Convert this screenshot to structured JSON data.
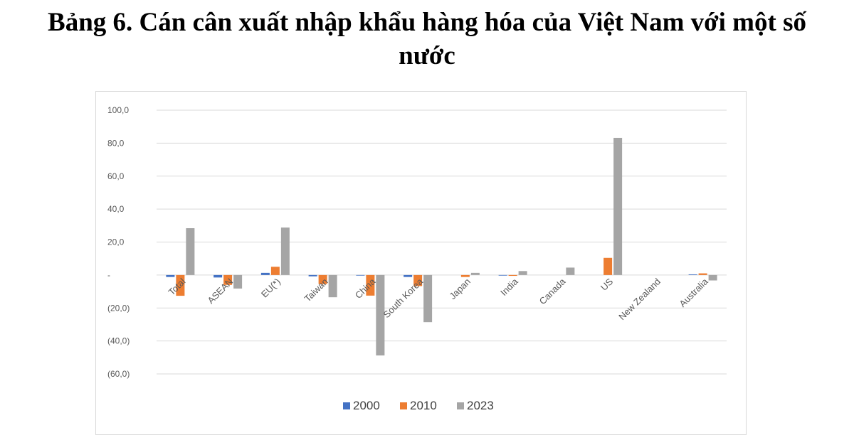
{
  "page": {
    "title_line1": "Bảng 6. Cán cân xuất nhập khẩu hàng hóa của Việt Nam với một số",
    "title_line2": "nước"
  },
  "chart_data": {
    "type": "bar",
    "categories": [
      "Total",
      "ASEAN",
      "EU(*)",
      "Taiwan",
      "China",
      "South Korea",
      "Japan",
      "India",
      "Canada",
      "US",
      "New Zealand",
      "Australia"
    ],
    "series": [
      {
        "name": "2000",
        "color": "#4472C4",
        "values": [
          -1.2,
          -1.5,
          1.3,
          -0.8,
          -0.2,
          -1.2,
          0.0,
          -0.1,
          0.0,
          0.0,
          0.0,
          0.4
        ]
      },
      {
        "name": "2010",
        "color": "#ED7D31",
        "values": [
          -12.6,
          -6.0,
          5.0,
          -5.5,
          -12.5,
          -6.7,
          -1.2,
          -0.5,
          0.0,
          10.4,
          0.0,
          1.0
        ]
      },
      {
        "name": "2023",
        "color": "#A5A5A5",
        "values": [
          28.4,
          -8.2,
          28.8,
          -13.5,
          -48.8,
          -28.6,
          1.3,
          2.4,
          4.5,
          83.2,
          0.0,
          -3.3
        ]
      }
    ],
    "ylim": [
      -60,
      100
    ],
    "yticks": [
      100,
      80,
      60,
      40,
      20,
      0,
      -20,
      -40,
      -60
    ],
    "ytick_labels": [
      "100,0",
      "80,0",
      "60,0",
      "40,0",
      "20,0",
      "-",
      "(20,0)",
      "(40,0)",
      "(60,0)"
    ],
    "grid": true,
    "legend_position": "bottom"
  }
}
